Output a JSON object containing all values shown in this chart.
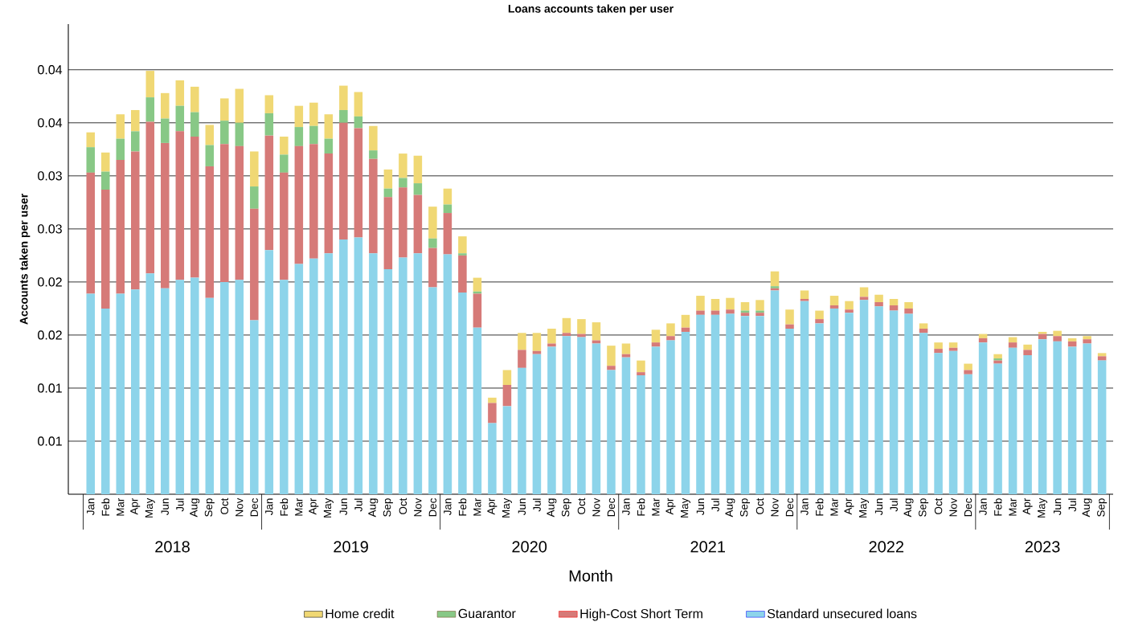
{
  "chart_data": {
    "type": "bar",
    "stacked": true,
    "title": "Loans accounts taken per user",
    "xlabel": "Month",
    "ylabel": "Accounts taken per user",
    "categories": [
      "Jan",
      "Feb",
      "Mar",
      "Apr",
      "May",
      "Jun",
      "Jul",
      "Aug",
      "Sep",
      "Oct",
      "Nov",
      "Dec",
      "Jan",
      "Feb",
      "Mar",
      "Apr",
      "May",
      "Jun",
      "Jul",
      "Aug",
      "Sep",
      "Oct",
      "Nov",
      "Dec",
      "Jan",
      "Feb",
      "Mar",
      "Apr",
      "May",
      "Jun",
      "Jul",
      "Aug",
      "Sep",
      "Oct",
      "Nov",
      "Dec",
      "Jan",
      "Feb",
      "Mar",
      "Apr",
      "May",
      "Jun",
      "Jul",
      "Aug",
      "Sep",
      "Oct",
      "Nov",
      "Dec",
      "Jan",
      "Feb",
      "Mar",
      "Apr",
      "May",
      "Jun",
      "Jul",
      "Aug",
      "Sep",
      "Oct",
      "Nov",
      "Dec",
      "Jan",
      "Feb",
      "Mar",
      "Apr",
      "May",
      "Jun",
      "Jul",
      "Aug",
      "Sep"
    ],
    "annotations": [
      "2018",
      "2019",
      "2020",
      "2021",
      "2022",
      "2023"
    ],
    "ylim": [
      0,
      0.0443
    ],
    "yticks": [
      {
        "value": 0.005,
        "label": "0.01"
      },
      {
        "value": 0.01,
        "label": "0.01"
      },
      {
        "value": 0.015,
        "label": "0.02"
      },
      {
        "value": 0.02,
        "label": "0.02"
      },
      {
        "value": 0.025,
        "label": "0.03"
      },
      {
        "value": 0.03,
        "label": "0.03"
      },
      {
        "value": 0.035,
        "label": "0.04"
      },
      {
        "value": 0.04,
        "label": "0.04"
      }
    ],
    "grid": "y",
    "legend": "bottom",
    "series": [
      {
        "name": "Standard unsecured loans",
        "color": "#8dd4ea",
        "values": [
          0.0189,
          0.0175,
          0.0189,
          0.0193,
          0.0208,
          0.0194,
          0.0202,
          0.0204,
          0.0185,
          0.02,
          0.0202,
          0.0164,
          0.023,
          0.0202,
          0.0217,
          0.0222,
          0.0227,
          0.024,
          0.0242,
          0.0227,
          0.0212,
          0.0223,
          0.0227,
          0.0195,
          0.0226,
          0.019,
          0.0157,
          0.0067,
          0.0083,
          0.0119,
          0.0132,
          0.0139,
          0.0149,
          0.0148,
          0.0142,
          0.0117,
          0.0129,
          0.0112,
          0.0139,
          0.0145,
          0.0153,
          0.0169,
          0.0169,
          0.017,
          0.0168,
          0.0168,
          0.0192,
          0.0156,
          0.0182,
          0.0161,
          0.0175,
          0.0171,
          0.0183,
          0.0177,
          0.0173,
          0.017,
          0.0152,
          0.0133,
          0.0135,
          0.0113,
          0.0143,
          0.0123,
          0.0138,
          0.0131,
          0.0146,
          0.0144,
          0.0139,
          0.0142,
          0.0126
        ]
      },
      {
        "name": "High-Cost Short Term",
        "color": "#d67a78",
        "values": [
          0.0114,
          0.0112,
          0.0126,
          0.013,
          0.0143,
          0.0137,
          0.014,
          0.0133,
          0.0124,
          0.013,
          0.0126,
          0.0105,
          0.0108,
          0.0101,
          0.0111,
          0.0108,
          0.0094,
          0.011,
          0.0103,
          0.0089,
          0.0068,
          0.0066,
          0.0055,
          0.0037,
          0.0039,
          0.0035,
          0.0032,
          0.0019,
          0.002,
          0.0017,
          0.0003,
          0.0003,
          0.0003,
          0.0003,
          0.0003,
          0.0004,
          0.0003,
          0.0003,
          0.0004,
          0.0004,
          0.0004,
          0.0004,
          0.0004,
          0.0004,
          0.0003,
          0.0003,
          0.0002,
          0.0004,
          0.0002,
          0.0004,
          0.0003,
          0.0003,
          0.0003,
          0.0004,
          0.0005,
          0.0005,
          0.0004,
          0.0004,
          0.0003,
          0.0004,
          0.0004,
          0.0003,
          0.0005,
          0.0005,
          0.0005,
          0.0005,
          0.0005,
          0.0004,
          0.0004
        ]
      },
      {
        "name": "Guarantor",
        "color": "#88c886",
        "values": [
          0.0024,
          0.0017,
          0.002,
          0.0019,
          0.0023,
          0.0023,
          0.0024,
          0.0023,
          0.002,
          0.0022,
          0.0022,
          0.0021,
          0.0021,
          0.0017,
          0.0018,
          0.0017,
          0.0014,
          0.0012,
          0.0011,
          0.0008,
          0.0008,
          0.0009,
          0.0011,
          0.0009,
          0.0008,
          0.0002,
          0.0002,
          0,
          0,
          0,
          0,
          0,
          0,
          0,
          0,
          0,
          0,
          0,
          0,
          0,
          0,
          0,
          0,
          0,
          0.0002,
          0.0002,
          0.0002,
          0,
          0,
          0,
          0,
          0,
          0,
          0,
          0,
          0,
          0,
          0,
          0,
          0,
          0,
          0.0002,
          0,
          0,
          0,
          0,
          0,
          0,
          0
        ]
      },
      {
        "name": "Home credit",
        "color": "#f0d874",
        "values": [
          0.0014,
          0.0018,
          0.0023,
          0.002,
          0.0025,
          0.0024,
          0.0024,
          0.0024,
          0.0019,
          0.0021,
          0.0032,
          0.0033,
          0.0017,
          0.0017,
          0.002,
          0.0022,
          0.0023,
          0.0023,
          0.0023,
          0.0023,
          0.0018,
          0.0023,
          0.0026,
          0.003,
          0.0015,
          0.0016,
          0.0013,
          0.0005,
          0.0014,
          0.0016,
          0.0017,
          0.0014,
          0.0014,
          0.0014,
          0.0017,
          0.0019,
          0.001,
          0.0011,
          0.0012,
          0.0012,
          0.0012,
          0.0014,
          0.0011,
          0.0011,
          0.0008,
          0.001,
          0.0014,
          0.0014,
          0.0008,
          0.0008,
          0.0009,
          0.0008,
          0.0009,
          0.0007,
          0.0006,
          0.0006,
          0.0005,
          0.0006,
          0.0005,
          0.0006,
          0.0004,
          0.0004,
          0.0005,
          0.0005,
          0.0002,
          0.0005,
          0.0003,
          0.0003,
          0.0003
        ]
      }
    ]
  }
}
